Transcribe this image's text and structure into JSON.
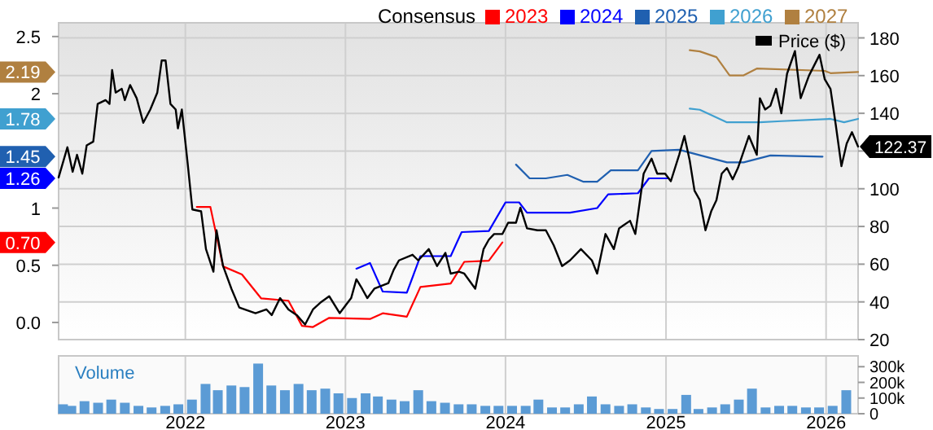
{
  "chart_data": [
    {
      "type": "line",
      "legend_title": "Consensus",
      "legend": "top",
      "grid": true,
      "tick_labels": "y",
      "xlim": [
        "2021-03-18",
        "2026-03-15"
      ],
      "xticks": [
        "2022",
        "2023",
        "2024",
        "2025",
        "2026"
      ],
      "annotations": [
        "0.70",
        "1.26",
        "1.45",
        "1.78",
        "2.19"
      ],
      "ylim": [
        -0.15,
        2.62
      ],
      "yticks": [
        {
          "value": 0,
          "label": "0.0"
        },
        0.5,
        1,
        2,
        2.5
      ],
      "y2lim": [
        20,
        188
      ],
      "y2ticks": [
        20,
        40,
        60,
        80,
        100,
        {
          "value": 120,
          "label": null
        },
        140,
        160,
        180
      ],
      "series": [
        {
          "name": "2023",
          "color": "#ff0000",
          "x": [
            "2022-01-27",
            "2022-02-27",
            "2022-03-28",
            "2022-05-10",
            "2022-06-23",
            "2022-08-24",
            "2022-09-24",
            "2022-10-19",
            "2022-11-25",
            "2023-02-26",
            "2023-03-27",
            "2023-05-21",
            "2023-06-21",
            "2023-08-29",
            "2023-09-29",
            "2023-11-24",
            "2023-12-25"
          ],
          "values": [
            1.01,
            1.01,
            0.49,
            0.42,
            0.21,
            0.19,
            -0.03,
            -0.04,
            0.04,
            0.03,
            0.08,
            0.05,
            0.31,
            0.34,
            0.53,
            0.54,
            0.7
          ]
        },
        {
          "name": "2024",
          "color": "#0000ff",
          "x": [
            "2023-01-26",
            "2023-02-26",
            "2023-03-27",
            "2023-05-21",
            "2023-06-21",
            "2023-08-29",
            "2023-09-23",
            "2023-11-24",
            "2024-01-01",
            "2024-02-01",
            "2024-02-19",
            "2024-05-27",
            "2024-07-28",
            "2024-08-22",
            "2024-10-29",
            "2024-11-23",
            "2025-01-05"
          ],
          "values": [
            0.47,
            0.52,
            0.27,
            0.26,
            0.58,
            0.58,
            0.79,
            0.8,
            1.05,
            1.05,
            0.96,
            0.96,
            1.0,
            1.12,
            1.13,
            1.26,
            1.26
          ]
        },
        {
          "name": "2025",
          "color": "#2060b0",
          "x": [
            "2024-01-25",
            "2024-02-25",
            "2024-04-02",
            "2024-05-21",
            "2024-06-27",
            "2024-07-28",
            "2024-08-28",
            "2024-10-29",
            "2024-11-29",
            "2025-01-31",
            "2025-05-20",
            "2025-06-27",
            "2025-08-27",
            "2025-12-24"
          ],
          "values": [
            1.38,
            1.26,
            1.26,
            1.29,
            1.23,
            1.23,
            1.33,
            1.33,
            1.5,
            1.51,
            1.4,
            1.4,
            1.46,
            1.45
          ]
        },
        {
          "name": "2026",
          "color": "#40a0d0",
          "x": [
            "2025-02-24",
            "2025-03-19",
            "2025-05-20",
            "2025-08-03",
            "2025-09-21",
            "2026-01-11",
            "2026-02-11",
            "2026-03-15"
          ],
          "values": [
            1.87,
            1.86,
            1.75,
            1.75,
            1.76,
            1.78,
            1.75,
            1.78
          ]
        },
        {
          "name": "2027",
          "color": "#b08040",
          "x": [
            "2025-02-24",
            "2025-03-19",
            "2025-04-26",
            "2025-05-26",
            "2025-06-27",
            "2025-07-27",
            "2025-12-29",
            "2026-01-11",
            "2026-03-15"
          ],
          "values": [
            2.38,
            2.37,
            2.32,
            2.16,
            2.16,
            2.22,
            2.2,
            2.18,
            2.19
          ]
        },
        {
          "name": "Price ($)",
          "color": "#000000",
          "axis": "y2",
          "x": [
            "2021-03-18",
            "2021-04-07",
            "2021-04-19",
            "2021-04-29",
            "2021-05-11",
            "2021-05-21",
            "2021-06-05",
            "2021-06-15",
            "2021-07-03",
            "2021-07-12",
            "2021-07-18",
            "2021-07-26",
            "2021-08-09",
            "2021-08-16",
            "2021-08-28",
            "2021-09-12",
            "2021-09-27",
            "2021-10-13",
            "2021-10-29",
            "2021-11-08",
            "2021-11-17",
            "2021-11-28",
            "2021-12-10",
            "2021-12-15",
            "2021-12-24",
            "2022-01-06",
            "2022-01-17",
            "2022-02-06",
            "2022-02-17",
            "2022-03-06",
            "2022-03-13",
            "2022-03-28",
            "2022-04-16",
            "2022-05-04",
            "2022-06-10",
            "2022-07-05",
            "2022-07-17",
            "2022-08-05",
            "2022-08-24",
            "2022-09-12",
            "2022-10-01",
            "2022-10-19",
            "2022-11-07",
            "2022-11-25",
            "2022-12-19",
            "2023-01-14",
            "2023-01-26",
            "2023-02-08",
            "2023-02-20",
            "2023-03-08",
            "2023-04-09",
            "2023-04-21",
            "2023-05-03",
            "2023-06-03",
            "2023-06-16",
            "2023-07-10",
            "2023-07-29",
            "2023-08-17",
            "2023-08-29",
            "2023-09-17",
            "2023-09-29",
            "2023-10-24",
            "2023-11-12",
            "2023-11-24",
            "2023-12-06",
            "2023-12-25",
            "2024-01-07",
            "2024-01-25",
            "2024-02-04",
            "2024-02-19",
            "2024-03-14",
            "2024-04-02",
            "2024-04-20",
            "2024-05-09",
            "2024-05-27",
            "2024-06-21",
            "2024-07-16",
            "2024-07-28",
            "2024-08-16",
            "2024-09-04",
            "2024-09-16",
            "2024-10-11",
            "2024-10-23",
            "2024-11-11",
            "2024-11-29",
            "2024-12-12",
            "2024-12-30",
            "2025-01-12",
            "2025-01-31",
            "2025-02-12",
            "2025-02-24",
            "2025-03-07",
            "2025-03-19",
            "2025-04-01",
            "2025-04-14",
            "2025-04-26",
            "2025-05-08",
            "2025-05-20",
            "2025-06-02",
            "2025-06-14",
            "2025-07-09",
            "2025-07-27",
            "2025-08-03",
            "2025-08-15",
            "2025-08-27",
            "2025-09-09",
            "2025-09-21",
            "2025-10-04",
            "2025-10-22",
            "2025-11-04",
            "2025-11-23",
            "2025-12-17",
            "2025-12-29",
            "2026-01-11",
            "2026-01-23",
            "2026-02-05",
            "2026-02-17",
            "2026-03-01",
            "2026-03-15"
          ],
          "values": [
            106,
            122,
            109,
            118,
            108,
            123,
            125,
            145,
            147,
            145,
            163,
            151,
            153,
            147,
            155,
            148,
            135,
            142,
            151,
            168,
            168,
            145,
            142,
            132,
            142,
            114,
            89,
            88,
            68,
            56,
            78,
            59,
            47,
            37,
            34,
            36,
            33,
            42,
            36,
            33,
            28,
            36,
            40,
            43,
            34,
            42,
            52,
            47,
            42,
            47,
            50,
            57,
            62,
            65,
            62,
            68,
            59,
            66,
            55,
            56,
            55,
            47,
            68,
            73,
            76,
            76,
            82,
            82,
            90,
            79,
            78,
            78,
            70,
            59,
            62,
            68,
            62,
            55,
            76,
            68,
            79,
            83,
            76,
            108,
            116,
            108,
            108,
            104,
            118,
            128,
            115,
            99,
            94,
            78,
            88,
            94,
            108,
            111,
            105,
            111,
            128,
            118,
            148,
            142,
            144,
            153,
            140,
            161,
            173,
            148,
            160,
            171,
            158,
            153,
            134,
            112,
            124,
            130,
            122.37
          ],
          "value_labels": [
            null,
            null,
            null,
            null,
            null,
            null,
            null,
            null,
            null,
            null,
            null,
            null,
            null,
            null,
            null,
            null,
            null,
            null,
            null,
            null,
            null,
            null,
            null,
            null,
            null,
            null,
            null,
            null,
            null,
            null,
            null,
            null,
            null,
            null,
            null,
            null,
            null,
            null,
            null,
            null,
            null,
            null,
            null,
            null,
            null,
            null,
            null,
            null,
            null,
            null,
            null,
            null,
            null,
            null,
            null,
            null,
            null,
            null,
            null,
            null,
            null,
            null,
            null,
            null,
            null,
            null,
            null,
            null,
            null,
            null,
            null,
            null,
            null,
            null,
            null,
            null,
            null,
            null,
            null,
            null,
            null,
            null,
            null,
            null,
            null,
            null,
            null,
            null,
            null,
            null,
            null,
            null,
            null,
            null,
            null,
            null,
            null,
            null,
            null,
            null,
            null,
            null,
            null,
            null,
            null,
            null,
            null,
            null,
            null,
            null,
            null,
            null,
            null,
            null,
            null,
            null,
            null,
            null,
            "122.37"
          ]
        }
      ]
    },
    {
      "type": "bar",
      "title": "Volume",
      "color": "#5b9bd5",
      "grid": "x",
      "xlim": [
        "2021-03-18",
        "2026-03-15"
      ],
      "xticks": [
        "2022",
        "2023",
        "2024",
        "2025",
        "2026"
      ],
      "ylim": [
        0,
        369000
      ],
      "yticks": [
        0,
        {
          "value": 100000,
          "label": "100k"
        },
        {
          "value": 200000,
          "label": "200k"
        },
        {
          "value": 300000,
          "label": "300k"
        }
      ],
      "x": [
        "2021-03-28",
        "2021-04-16",
        "2021-05-16",
        "2021-06-16",
        "2021-07-16",
        "2021-08-16",
        "2021-09-16",
        "2021-10-16",
        "2021-11-16",
        "2021-12-16",
        "2022-01-16",
        "2022-02-16",
        "2022-03-16",
        "2022-04-16",
        "2022-05-16",
        "2022-06-16",
        "2022-07-16",
        "2022-08-16",
        "2022-09-16",
        "2022-10-16",
        "2022-11-16",
        "2022-12-16",
        "2023-01-16",
        "2023-02-16",
        "2023-03-16",
        "2023-04-16",
        "2023-05-16",
        "2023-06-16",
        "2023-07-16",
        "2023-08-16",
        "2023-09-16",
        "2023-10-16",
        "2023-11-16",
        "2023-12-16",
        "2024-01-16",
        "2024-02-16",
        "2024-03-16",
        "2024-04-16",
        "2024-05-16",
        "2024-06-16",
        "2024-07-16",
        "2024-08-16",
        "2024-09-16",
        "2024-10-16",
        "2024-11-16",
        "2024-12-16",
        "2025-01-16",
        "2025-02-16",
        "2025-03-16",
        "2025-04-16",
        "2025-05-16",
        "2025-06-16",
        "2025-07-16",
        "2025-08-16",
        "2025-09-16",
        "2025-10-16",
        "2025-11-16",
        "2025-12-16",
        "2026-01-16",
        "2026-02-16"
      ],
      "values": [
        60000,
        50000,
        80000,
        70000,
        90000,
        70000,
        50000,
        40000,
        50000,
        60000,
        90000,
        190000,
        150000,
        180000,
        170000,
        320000,
        180000,
        150000,
        190000,
        150000,
        160000,
        130000,
        100000,
        130000,
        110000,
        90000,
        80000,
        150000,
        80000,
        70000,
        60000,
        60000,
        50000,
        50000,
        50000,
        50000,
        90000,
        40000,
        40000,
        60000,
        110000,
        60000,
        50000,
        60000,
        40000,
        30000,
        30000,
        120000,
        30000,
        40000,
        60000,
        90000,
        160000,
        40000,
        50000,
        50000,
        40000,
        40000,
        50000,
        150000
      ]
    }
  ]
}
